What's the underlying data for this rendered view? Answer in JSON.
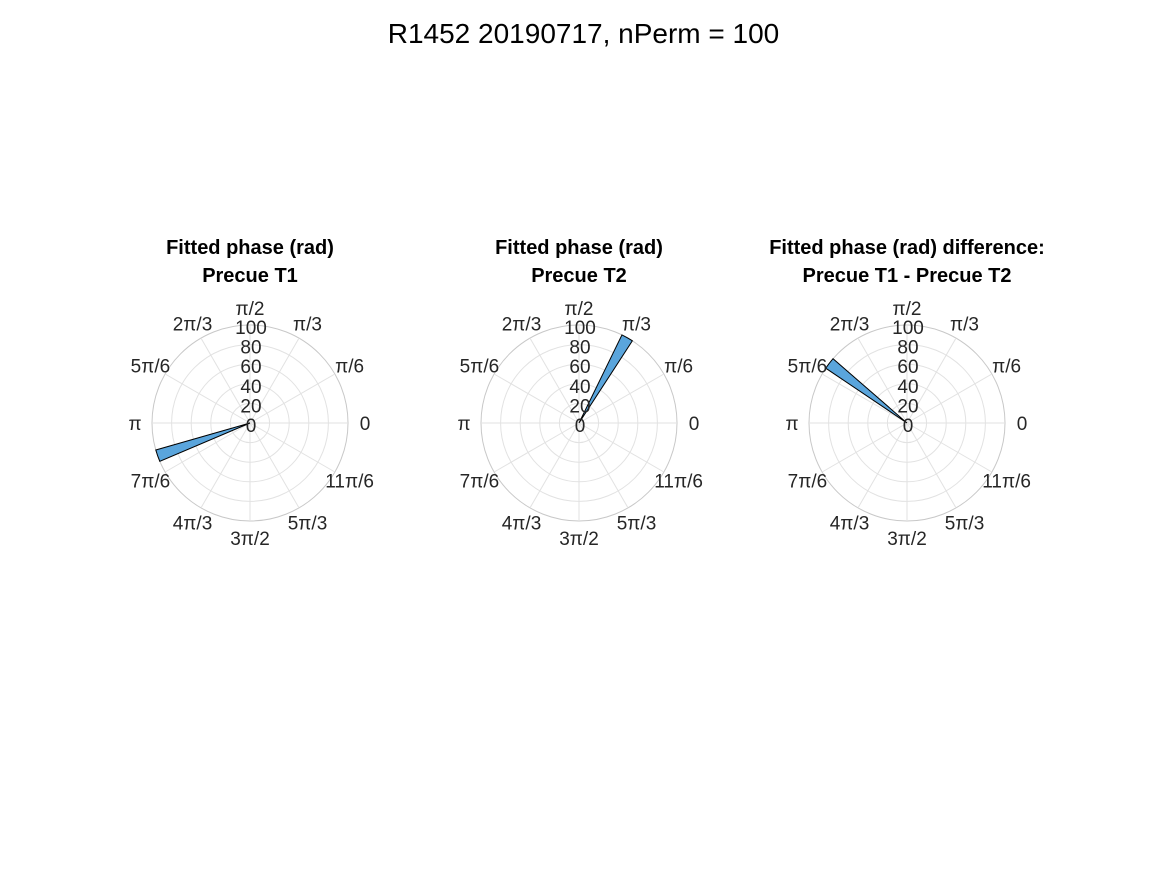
{
  "figure_title": "R1452 20190717, nPerm = 100",
  "colors": {
    "bar_fill": "#5aa5dc",
    "bar_edge": "#000000",
    "grid": "#e2e2e2",
    "outer_ring": "#c8c8c8",
    "label": "#262626"
  },
  "theta_tick_labels": [
    "0",
    "π/6",
    "π/3",
    "π/2",
    "2π/3",
    "5π/6",
    "π",
    "7π/6",
    "4π/3",
    "3π/2",
    "5π/3",
    "11π/6"
  ],
  "r_tick_labels": [
    "0",
    "20",
    "40",
    "60",
    "80",
    "100"
  ],
  "chart_data": [
    {
      "type": "polar-histogram",
      "title": [
        "Fitted phase (rad)",
        "Precue T1"
      ],
      "rlim": [
        0,
        100
      ],
      "rticks": [
        0,
        20,
        40,
        60,
        80,
        100
      ],
      "theta_ticks_deg": [
        0,
        30,
        60,
        90,
        120,
        150,
        180,
        210,
        240,
        270,
        300,
        330
      ],
      "bins_deg": [
        [
          196,
          203
        ]
      ],
      "values": [
        100
      ],
      "grid": true
    },
    {
      "type": "polar-histogram",
      "title": [
        "Fitted phase (rad)",
        "Precue T2"
      ],
      "rlim": [
        0,
        100
      ],
      "rticks": [
        0,
        20,
        40,
        60,
        80,
        100
      ],
      "theta_ticks_deg": [
        0,
        30,
        60,
        90,
        120,
        150,
        180,
        210,
        240,
        270,
        300,
        330
      ],
      "bins_deg": [
        [
          57,
          64
        ]
      ],
      "values": [
        100
      ],
      "grid": true
    },
    {
      "type": "polar-histogram",
      "title": [
        "Fitted phase (rad) difference:",
        "Precue T1 - Precue T2"
      ],
      "rlim": [
        0,
        100
      ],
      "rticks": [
        0,
        20,
        40,
        60,
        80,
        100
      ],
      "theta_ticks_deg": [
        0,
        30,
        60,
        90,
        120,
        150,
        180,
        210,
        240,
        270,
        300,
        330
      ],
      "bins_deg": [
        [
          139,
          146
        ]
      ],
      "values": [
        100
      ],
      "grid": true
    }
  ]
}
